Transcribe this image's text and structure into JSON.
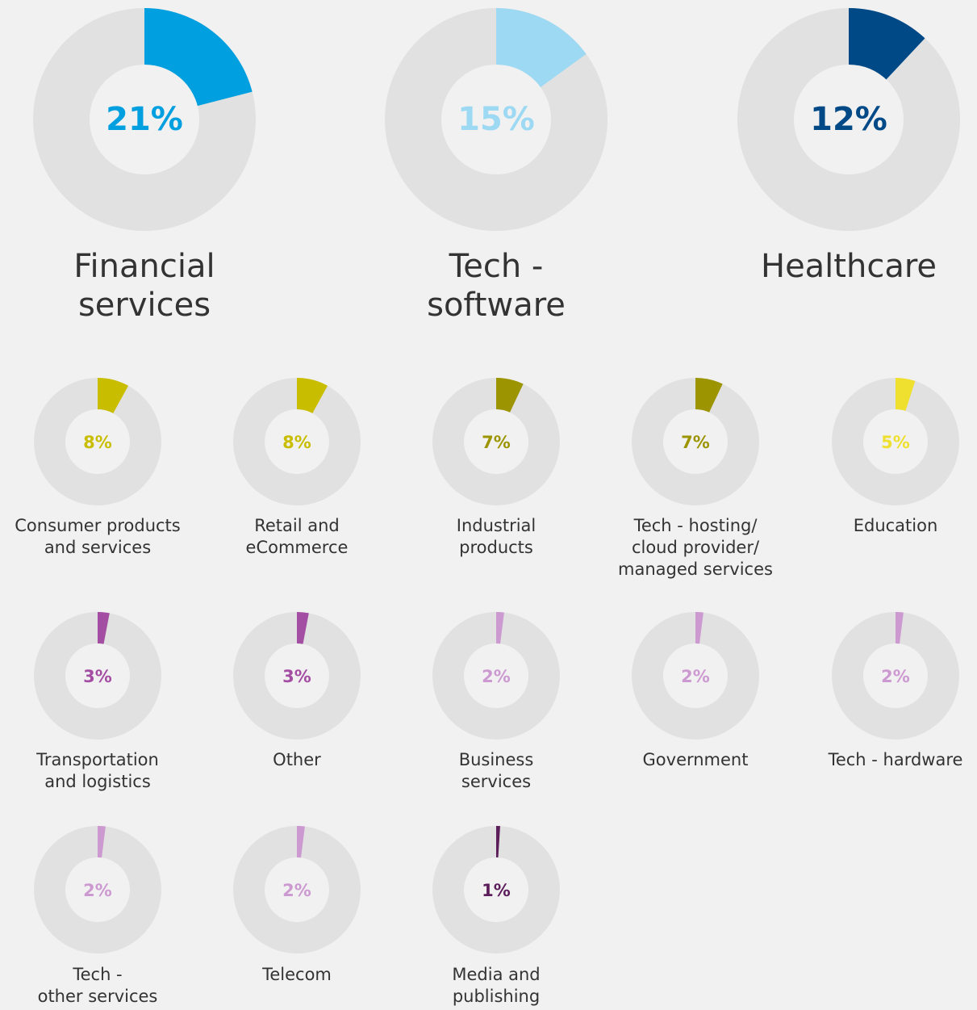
{
  "chart_data": [
    {
      "type": "donut",
      "categories": [
        "Financial\nservices"
      ],
      "values": [
        21
      ],
      "value_labels": [
        "21%"
      ],
      "color": "#009fdf"
    },
    {
      "type": "donut",
      "categories": [
        "Tech -\nsoftware"
      ],
      "values": [
        15
      ],
      "value_labels": [
        "15%"
      ],
      "color": "#9dd9f3"
    },
    {
      "type": "donut",
      "categories": [
        "Healthcare"
      ],
      "values": [
        12
      ],
      "value_labels": [
        "12%"
      ],
      "color": "#004987"
    },
    {
      "type": "donut",
      "categories": [
        "Consumer products\nand services"
      ],
      "values": [
        8
      ],
      "value_labels": [
        "8%"
      ],
      "color": "#c9bd00"
    },
    {
      "type": "donut",
      "categories": [
        "Retail and\neCommerce"
      ],
      "values": [
        8
      ],
      "value_labels": [
        "8%"
      ],
      "color": "#c9bd00"
    },
    {
      "type": "donut",
      "categories": [
        "Industrial\nproducts"
      ],
      "values": [
        7
      ],
      "value_labels": [
        "7%"
      ],
      "color": "#9c9400"
    },
    {
      "type": "donut",
      "categories": [
        "Tech - hosting/\ncloud provider/\nmanaged services"
      ],
      "values": [
        7
      ],
      "value_labels": [
        "7%"
      ],
      "color": "#9c9400"
    },
    {
      "type": "donut",
      "categories": [
        "Education"
      ],
      "values": [
        5
      ],
      "value_labels": [
        "5%"
      ],
      "color": "#efe030"
    },
    {
      "type": "donut",
      "categories": [
        "Transportation\nand logistics"
      ],
      "values": [
        3
      ],
      "value_labels": [
        "3%"
      ],
      "color": "#a44ea3"
    },
    {
      "type": "donut",
      "categories": [
        "Other"
      ],
      "values": [
        3
      ],
      "value_labels": [
        "3%"
      ],
      "color": "#a44ea3"
    },
    {
      "type": "donut",
      "categories": [
        "Business\nservices"
      ],
      "values": [
        2
      ],
      "value_labels": [
        "2%"
      ],
      "color": "#cc99d0"
    },
    {
      "type": "donut",
      "categories": [
        "Government"
      ],
      "values": [
        2
      ],
      "value_labels": [
        "2%"
      ],
      "color": "#cc99d0"
    },
    {
      "type": "donut",
      "categories": [
        "Tech - hardware"
      ],
      "values": [
        2
      ],
      "value_labels": [
        "2%"
      ],
      "color": "#cc99d0"
    },
    {
      "type": "donut",
      "categories": [
        "Tech -\nother services"
      ],
      "values": [
        2
      ],
      "value_labels": [
        "2%"
      ],
      "color": "#cc99d0"
    },
    {
      "type": "donut",
      "categories": [
        "Telecom"
      ],
      "values": [
        2
      ],
      "value_labels": [
        "2%"
      ],
      "color": "#cc99d0"
    },
    {
      "type": "donut",
      "categories": [
        "Media and\npublishing"
      ],
      "values": [
        1
      ],
      "value_labels": [
        "1%"
      ],
      "color": "#5c1e5a"
    }
  ]
}
